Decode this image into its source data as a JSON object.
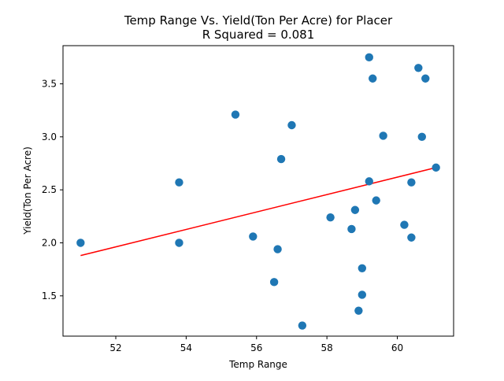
{
  "chart_data": {
    "type": "scatter",
    "title": "Temp Range Vs. Yield(Ton Per Acre) for Placer",
    "subtitle": "R Squared =  0.081",
    "xlabel": "Temp Range",
    "ylabel": "Yield(Ton Per Acre)",
    "xlim": [
      50.5,
      61.6
    ],
    "ylim": [
      1.12,
      3.86
    ],
    "xticks": [
      "52",
      "54",
      "56",
      "58",
      "60"
    ],
    "yticks": [
      "1.5",
      "2.0",
      "2.5",
      "3.0",
      "3.5"
    ],
    "grid": false,
    "point_color": "#1f77b4",
    "line_color": "#ff0000",
    "points": [
      {
        "x": 51.0,
        "y": 2.0
      },
      {
        "x": 53.8,
        "y": 2.57
      },
      {
        "x": 53.8,
        "y": 2.0
      },
      {
        "x": 55.4,
        "y": 3.21
      },
      {
        "x": 55.9,
        "y": 2.06
      },
      {
        "x": 56.5,
        "y": 1.63
      },
      {
        "x": 56.6,
        "y": 1.94
      },
      {
        "x": 56.7,
        "y": 2.79
      },
      {
        "x": 57.0,
        "y": 3.11
      },
      {
        "x": 57.3,
        "y": 1.22
      },
      {
        "x": 58.1,
        "y": 2.24
      },
      {
        "x": 58.7,
        "y": 2.13
      },
      {
        "x": 58.8,
        "y": 2.31
      },
      {
        "x": 58.9,
        "y": 1.36
      },
      {
        "x": 59.0,
        "y": 1.76
      },
      {
        "x": 59.0,
        "y": 1.51
      },
      {
        "x": 59.2,
        "y": 3.75
      },
      {
        "x": 59.2,
        "y": 2.58
      },
      {
        "x": 59.3,
        "y": 3.55
      },
      {
        "x": 59.4,
        "y": 2.4
      },
      {
        "x": 59.6,
        "y": 3.01
      },
      {
        "x": 60.2,
        "y": 2.17
      },
      {
        "x": 60.4,
        "y": 2.57
      },
      {
        "x": 60.4,
        "y": 2.05
      },
      {
        "x": 60.6,
        "y": 3.65
      },
      {
        "x": 60.7,
        "y": 3.0
      },
      {
        "x": 60.8,
        "y": 3.55
      },
      {
        "x": 61.1,
        "y": 2.71
      }
    ],
    "trendline": [
      {
        "x": 51.0,
        "y": 1.88
      },
      {
        "x": 61.1,
        "y": 2.71
      }
    ]
  }
}
